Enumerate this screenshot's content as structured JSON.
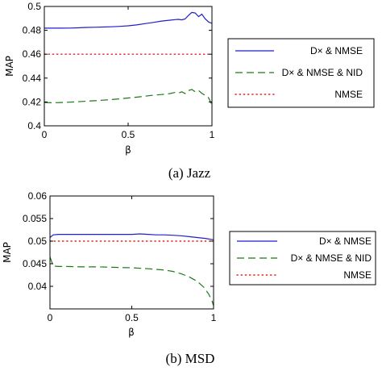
{
  "chart_data": [
    {
      "type": "line",
      "caption": "(a) Jazz",
      "xlabel": "β",
      "ylabel": "MAP",
      "xlim": [
        0,
        1
      ],
      "ylim": [
        0.4,
        0.5
      ],
      "xticks": [
        "0",
        "0.5",
        "1"
      ],
      "yticks": [
        "0.4",
        "0.42",
        "0.44",
        "0.46",
        "0.48",
        "0.5"
      ],
      "legend_position": "outside-right",
      "grid": false,
      "series": [
        {
          "name": "D× & NMSE",
          "style": "solid",
          "color": "#1f1fcc",
          "x": [
            0,
            0.05,
            0.1,
            0.15,
            0.2,
            0.25,
            0.3,
            0.35,
            0.4,
            0.45,
            0.5,
            0.55,
            0.6,
            0.65,
            0.7,
            0.75,
            0.78,
            0.8,
            0.82,
            0.84,
            0.86,
            0.88,
            0.9,
            0.92,
            0.94,
            0.96,
            0.98,
            1.0
          ],
          "y": [
            0.4818,
            0.4818,
            0.4818,
            0.4819,
            0.4821,
            0.4824,
            0.4826,
            0.4828,
            0.483,
            0.4833,
            0.4838,
            0.4845,
            0.4856,
            0.4866,
            0.4878,
            0.4885,
            0.489,
            0.4892,
            0.4888,
            0.4895,
            0.4925,
            0.495,
            0.4945,
            0.4915,
            0.4935,
            0.4895,
            0.487,
            0.4858
          ]
        },
        {
          "name": "D× & NMSE & NID",
          "style": "dashed",
          "color": "#1a7a1a",
          "x": [
            0,
            0.05,
            0.1,
            0.15,
            0.2,
            0.25,
            0.3,
            0.35,
            0.4,
            0.45,
            0.5,
            0.55,
            0.6,
            0.65,
            0.7,
            0.75,
            0.78,
            0.8,
            0.82,
            0.84,
            0.86,
            0.88,
            0.9,
            0.92,
            0.94,
            0.96,
            0.98,
            1.0
          ],
          "y": [
            0.4195,
            0.4193,
            0.4195,
            0.4198,
            0.4202,
            0.4206,
            0.421,
            0.4215,
            0.422,
            0.4226,
            0.4233,
            0.424,
            0.4248,
            0.4257,
            0.4262,
            0.427,
            0.428,
            0.4275,
            0.4285,
            0.427,
            0.4295,
            0.4305,
            0.4285,
            0.4295,
            0.4272,
            0.4255,
            0.4235,
            0.4175
          ]
        },
        {
          "name": "NMSE",
          "style": "dotted",
          "color": "#e02020",
          "x": [
            0,
            1
          ],
          "y": [
            0.46,
            0.46
          ]
        }
      ]
    },
    {
      "type": "line",
      "caption": "(b) MSD",
      "xlabel": "β",
      "ylabel": "MAP",
      "xlim": [
        0,
        1
      ],
      "ylim": [
        0.035,
        0.06
      ],
      "xticks": [
        "0",
        "0.5",
        "1"
      ],
      "yticks": [
        "0.04",
        "0.045",
        "0.05",
        "0.055",
        "0.06"
      ],
      "legend_position": "outside-right",
      "grid": false,
      "series": [
        {
          "name": "D× & NMSE",
          "style": "solid",
          "color": "#1f1fcc",
          "x": [
            0,
            0.02,
            0.05,
            0.1,
            0.2,
            0.3,
            0.4,
            0.5,
            0.55,
            0.6,
            0.65,
            0.7,
            0.75,
            0.8,
            0.85,
            0.9,
            0.95,
            1.0
          ],
          "y": [
            0.0508,
            0.0514,
            0.0515,
            0.0515,
            0.0515,
            0.0515,
            0.0515,
            0.0515,
            0.0516,
            0.0515,
            0.0514,
            0.0514,
            0.0513,
            0.0512,
            0.051,
            0.0508,
            0.0506,
            0.0503
          ]
        },
        {
          "name": "D× & NMSE & NID",
          "style": "dashed",
          "color": "#1a7a1a",
          "x": [
            0,
            0.02,
            0.05,
            0.1,
            0.2,
            0.3,
            0.4,
            0.5,
            0.6,
            0.7,
            0.75,
            0.8,
            0.85,
            0.9,
            0.94,
            0.97,
            0.99,
            1.0
          ],
          "y": [
            0.0465,
            0.0445,
            0.0444,
            0.0444,
            0.0443,
            0.0443,
            0.0442,
            0.0441,
            0.0439,
            0.0436,
            0.0433,
            0.0428,
            0.0421,
            0.0411,
            0.0398,
            0.0383,
            0.0368,
            0.0357
          ]
        },
        {
          "name": "NMSE",
          "style": "dotted",
          "color": "#e02020",
          "x": [
            0,
            1
          ],
          "y": [
            0.05,
            0.05
          ]
        }
      ]
    }
  ]
}
